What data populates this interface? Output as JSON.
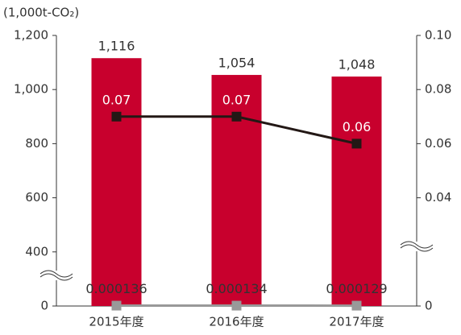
{
  "chart_data": {
    "type": "bar",
    "y_label": "(1,000t-CO₂)",
    "categories": [
      "2015年度",
      "2016年度",
      "2017年度"
    ],
    "series": [
      {
        "name": "bars",
        "type": "bar",
        "color": "#c8002d",
        "values": [
          1116,
          1054,
          1048
        ],
        "value_labels": [
          "1,116",
          "1,054",
          "1,048"
        ]
      },
      {
        "name": "line-a",
        "type": "line",
        "axis": "y2",
        "color": "#231815",
        "values": [
          0.07,
          0.07,
          0.06
        ]
      },
      {
        "name": "line-b",
        "type": "line",
        "axis": "y2",
        "color": "#999999",
        "values": [
          0.000136,
          0.000134,
          0.000129
        ]
      }
    ],
    "ylim": [
      0,
      1200
    ],
    "yticks": [
      0,
      400,
      600,
      800,
      {
        "value": 1000,
        "label": "1,000"
      },
      {
        "value": 1200,
        "label": "1,200"
      }
    ],
    "y2lim": [
      0,
      0.1
    ],
    "y2ticks": [
      0,
      0.04,
      0.06,
      0.08,
      {
        "value": 0.1,
        "label": "0.10"
      }
    ],
    "axis_break": true
  }
}
